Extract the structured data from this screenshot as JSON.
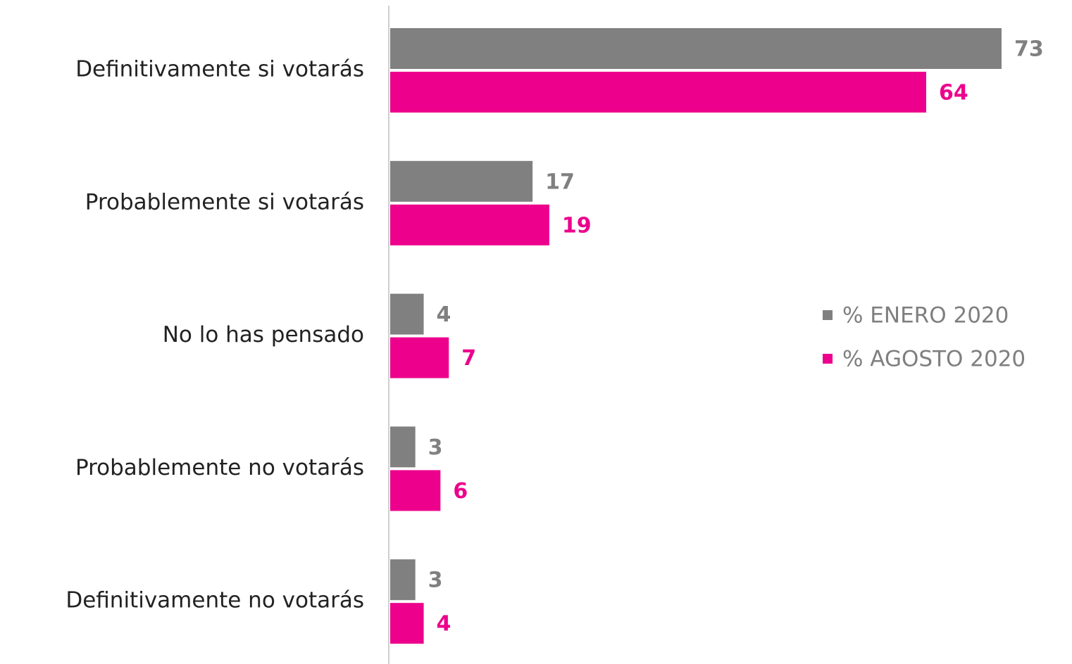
{
  "chart_data": {
    "type": "hbar",
    "categories": [
      "Definitivamente si votarás",
      "Probablemente si votarás",
      "No lo has pensado",
      "Probablemente no votarás",
      "Definitivamente no votarás"
    ],
    "series": [
      {
        "name": "% ENERO 2020",
        "color": "#808080",
        "values": [
          73,
          17,
          4,
          3,
          3
        ]
      },
      {
        "name": "% AGOSTO 2020",
        "color": "#ec008c",
        "values": [
          64,
          19,
          7,
          6,
          4
        ]
      }
    ],
    "legend": "right"
  }
}
